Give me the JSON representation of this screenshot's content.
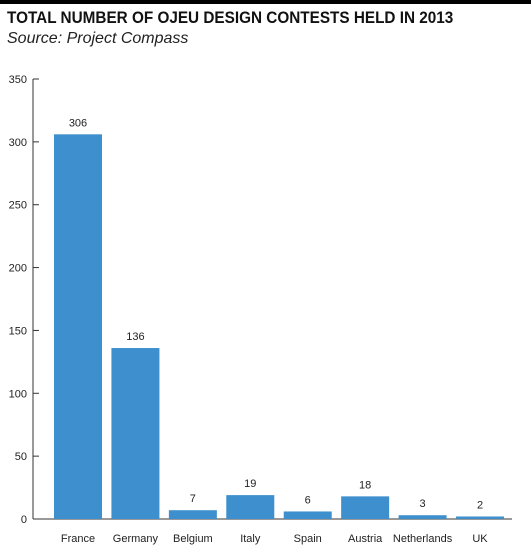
{
  "chart_data": {
    "type": "bar",
    "title": "TOTAL NUMBER OF OJEU DESIGN CONTESTS HELD IN 2013",
    "subtitle": "Source: Project Compass",
    "xlabel": "",
    "ylabel": "",
    "categories": [
      "France",
      "Germany",
      "Belgium",
      "Italy",
      "Spain",
      "Austria",
      "Netherlands",
      "UK"
    ],
    "values": [
      306,
      136,
      7,
      19,
      6,
      18,
      3,
      2
    ],
    "data_labels": [
      "306",
      "136",
      "7",
      "19",
      "6",
      "18",
      "3",
      "2"
    ],
    "ylim": [
      0,
      350
    ],
    "yticks": [
      0,
      50,
      100,
      150,
      200,
      250,
      300,
      350
    ],
    "ytick_labels": [
      "0",
      "50",
      "100",
      "150",
      "200",
      "250",
      "300",
      "350"
    ],
    "bar_color": "#3d8fcd",
    "grid": false,
    "legend": "none"
  }
}
